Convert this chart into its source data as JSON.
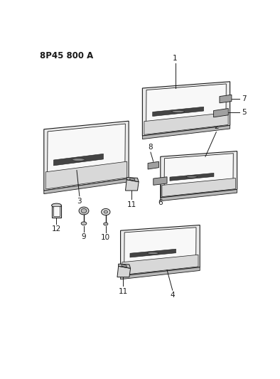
{
  "title_code": "8P45 800 A",
  "bg_color": "#ffffff",
  "line_color": "#1a1a1a",
  "panel_fill": "#e8e8e8",
  "panel_inner": "#f5f5f5",
  "panel_shadow": "#c0c0c0",
  "handle_color": "#555555",
  "bracket_fill": "#999999",
  "box_fill": "#d8d8d8"
}
